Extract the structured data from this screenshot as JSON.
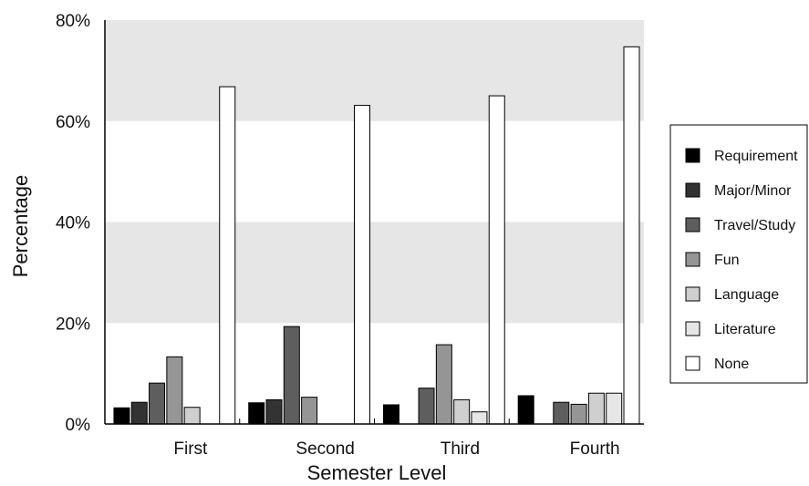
{
  "chart_data": {
    "type": "bar",
    "xlabel": "Semester Level",
    "ylabel": "Percentage",
    "ylim": [
      0,
      80
    ],
    "yticks": [
      "0%",
      "20%",
      "40%",
      "60%",
      "80%"
    ],
    "categories": [
      "First",
      "Second",
      "Third",
      "Fourth"
    ],
    "legend_position": "right",
    "grid": "alternating horizontal bands",
    "series": [
      {
        "name": "Requirement",
        "color": "#000000",
        "values": [
          3.2,
          4.2,
          3.8,
          5.6
        ]
      },
      {
        "name": "Major/Minor",
        "color": "#333333",
        "values": [
          4.3,
          4.8,
          0,
          0
        ]
      },
      {
        "name": "Travel/Study",
        "color": "#5e5e5e",
        "values": [
          8.1,
          19.3,
          7.1,
          4.3
        ]
      },
      {
        "name": "Fun",
        "color": "#959595",
        "values": [
          13.3,
          5.3,
          15.7,
          3.9
        ]
      },
      {
        "name": "Language",
        "color": "#cfcfcf",
        "values": [
          3.3,
          0,
          4.8,
          6.1
        ]
      },
      {
        "name": "Literature",
        "color": "#e6e6e6",
        "values": [
          0,
          0,
          2.4,
          6.1
        ]
      },
      {
        "name": "None",
        "color": "#ffffff",
        "values": [
          66.8,
          63.1,
          65.0,
          74.7
        ]
      }
    ]
  }
}
